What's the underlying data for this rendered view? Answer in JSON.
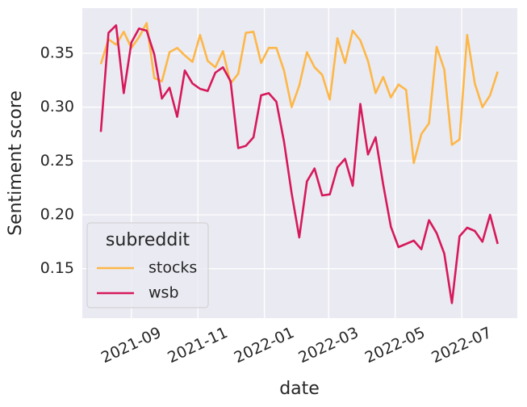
{
  "chart_data": {
    "type": "line",
    "xlabel": "date",
    "ylabel": "Sentiment score",
    "x": [
      "2021-08-04",
      "2021-08-11",
      "2021-08-18",
      "2021-08-25",
      "2021-09-01",
      "2021-09-08",
      "2021-09-15",
      "2021-09-22",
      "2021-09-29",
      "2021-10-06",
      "2021-10-13",
      "2021-10-20",
      "2021-10-27",
      "2021-11-03",
      "2021-11-10",
      "2021-11-17",
      "2021-11-24",
      "2021-12-01",
      "2021-12-08",
      "2021-12-15",
      "2021-12-22",
      "2021-12-29",
      "2022-01-05",
      "2022-01-12",
      "2022-01-19",
      "2022-01-26",
      "2022-02-02",
      "2022-02-09",
      "2022-02-16",
      "2022-02-23",
      "2022-03-02",
      "2022-03-09",
      "2022-03-16",
      "2022-03-23",
      "2022-03-30",
      "2022-04-06",
      "2022-04-13",
      "2022-04-20",
      "2022-04-27",
      "2022-05-04",
      "2022-05-11",
      "2022-05-18",
      "2022-05-25",
      "2022-06-01",
      "2022-06-08",
      "2022-06-15",
      "2022-06-22",
      "2022-06-29",
      "2022-07-06",
      "2022-07-13",
      "2022-07-20",
      "2022-07-27",
      "2022-08-03"
    ],
    "series": [
      {
        "name": "stocks",
        "color": "#fdb748",
        "values": [
          0.34,
          0.363,
          0.358,
          0.37,
          0.355,
          0.365,
          0.378,
          0.327,
          0.324,
          0.351,
          0.355,
          0.348,
          0.342,
          0.367,
          0.343,
          0.337,
          0.352,
          0.322,
          0.331,
          0.369,
          0.37,
          0.341,
          0.355,
          0.355,
          0.334,
          0.3,
          0.32,
          0.351,
          0.337,
          0.33,
          0.307,
          0.364,
          0.341,
          0.371,
          0.362,
          0.343,
          0.313,
          0.328,
          0.309,
          0.321,
          0.316,
          0.248,
          0.275,
          0.285,
          0.356,
          0.335,
          0.265,
          0.27,
          0.367,
          0.322,
          0.3,
          0.311,
          0.333
        ]
      },
      {
        "name": "wsb",
        "color": "#d6195a",
        "values": [
          0.277,
          0.369,
          0.376,
          0.313,
          0.36,
          0.373,
          0.371,
          0.349,
          0.308,
          0.318,
          0.291,
          0.334,
          0.322,
          0.317,
          0.315,
          0.332,
          0.337,
          0.324,
          0.262,
          0.264,
          0.272,
          0.311,
          0.313,
          0.305,
          0.268,
          0.22,
          0.179,
          0.231,
          0.243,
          0.218,
          0.219,
          0.244,
          0.252,
          0.227,
          0.303,
          0.256,
          0.272,
          0.228,
          0.189,
          0.17,
          0.173,
          0.176,
          0.168,
          0.195,
          0.183,
          0.164,
          0.118,
          0.18,
          0.188,
          0.185,
          0.175,
          0.2,
          0.173
        ]
      }
    ],
    "xlim": [
      "2021-07-18",
      "2022-08-21"
    ],
    "xticks": [
      "2021-09",
      "2021-11",
      "2022-01",
      "2022-03",
      "2022-05",
      "2022-07"
    ],
    "ylim": [
      0.104,
      0.392
    ],
    "yticks": [
      0.15,
      {
        "value": 0.2,
        "label": "0.20"
      },
      0.25,
      {
        "value": 0.3,
        "label": "0.30"
      },
      0.35
    ],
    "grid": true,
    "legend": "lower left",
    "legend_title": "subreddit"
  }
}
